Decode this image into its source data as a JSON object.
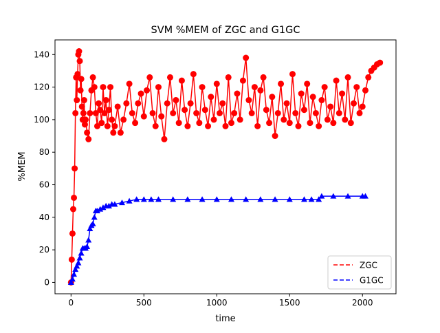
{
  "chart_data": {
    "type": "line",
    "title": "SVM %MEM of ZGC and G1GC",
    "xlabel": "time",
    "ylabel": "%MEM",
    "xlim": [
      -110,
      2230
    ],
    "ylim": [
      -7,
      149
    ],
    "xticks": [
      0,
      500,
      1000,
      1500,
      2000
    ],
    "yticks": [
      0,
      20,
      40,
      60,
      80,
      100,
      120,
      140
    ],
    "grid": false,
    "legend_position": "lower-right",
    "series": [
      {
        "name": "ZGC",
        "color": "#ff0000",
        "line_style": "dashed",
        "marker": "circle",
        "x": [
          0,
          5,
          10,
          15,
          20,
          25,
          30,
          35,
          40,
          45,
          50,
          55,
          60,
          65,
          70,
          75,
          80,
          85,
          90,
          95,
          100,
          110,
          120,
          130,
          140,
          150,
          160,
          170,
          180,
          190,
          200,
          210,
          220,
          230,
          240,
          250,
          260,
          270,
          280,
          290,
          300,
          320,
          340,
          360,
          380,
          400,
          420,
          440,
          460,
          480,
          500,
          520,
          540,
          560,
          580,
          600,
          620,
          640,
          660,
          680,
          700,
          720,
          740,
          760,
          780,
          800,
          820,
          840,
          860,
          880,
          900,
          920,
          940,
          960,
          980,
          1000,
          1020,
          1040,
          1060,
          1080,
          1100,
          1120,
          1140,
          1160,
          1180,
          1200,
          1220,
          1240,
          1260,
          1280,
          1300,
          1320,
          1340,
          1360,
          1380,
          1400,
          1420,
          1440,
          1460,
          1480,
          1500,
          1520,
          1540,
          1560,
          1580,
          1600,
          1620,
          1640,
          1660,
          1680,
          1700,
          1720,
          1740,
          1760,
          1780,
          1800,
          1820,
          1840,
          1860,
          1880,
          1900,
          1920,
          1940,
          1960,
          1980,
          2000,
          2020,
          2040,
          2060,
          2080,
          2100,
          2120
        ],
        "y": [
          0,
          14,
          30,
          45,
          52,
          70,
          104,
          126,
          112,
          128,
          140,
          142,
          136,
          118,
          125,
          108,
          100,
          104,
          112,
          97,
          100,
          92,
          88,
          104,
          118,
          126,
          120,
          104,
          96,
          110,
          106,
          98,
          120,
          104,
          112,
          96,
          106,
          120,
          100,
          92,
          96,
          108,
          92,
          100,
          110,
          122,
          104,
          98,
          110,
          116,
          102,
          118,
          126,
          104,
          96,
          120,
          102,
          88,
          110,
          126,
          104,
          112,
          98,
          124,
          106,
          96,
          110,
          128,
          104,
          98,
          120,
          106,
          96,
          114,
          100,
          122,
          104,
          110,
          96,
          126,
          98,
          104,
          116,
          100,
          124,
          138,
          112,
          104,
          120,
          96,
          118,
          126,
          106,
          98,
          114,
          90,
          104,
          122,
          100,
          110,
          98,
          128,
          104,
          96,
          116,
          106,
          122,
          98,
          114,
          104,
          96,
          112,
          120,
          100,
          108,
          98,
          124,
          104,
          116,
          100,
          126,
          98,
          110,
          120,
          104,
          108,
          118,
          126,
          130,
          132,
          134,
          135
        ]
      },
      {
        "name": "G1GC",
        "color": "#0000ff",
        "line_style": "dashed",
        "marker": "triangle",
        "x": [
          0,
          10,
          20,
          30,
          40,
          50,
          60,
          70,
          80,
          90,
          100,
          110,
          120,
          130,
          140,
          150,
          160,
          170,
          180,
          200,
          220,
          240,
          260,
          280,
          300,
          350,
          400,
          450,
          500,
          550,
          600,
          700,
          800,
          900,
          1000,
          1100,
          1200,
          1300,
          1400,
          1500,
          1600,
          1650,
          1700,
          1720,
          1800,
          1900,
          2000,
          2020
        ],
        "y": [
          0,
          2,
          5,
          8,
          10,
          12,
          15,
          18,
          21,
          21,
          21,
          22,
          26,
          33,
          35,
          36,
          40,
          44,
          44,
          45,
          46,
          47,
          47,
          48,
          48,
          49,
          50,
          51,
          51,
          51,
          51,
          51,
          51,
          51,
          51,
          51,
          51,
          51,
          51,
          51,
          51,
          51,
          51,
          53,
          53,
          53,
          53,
          53
        ]
      }
    ]
  }
}
